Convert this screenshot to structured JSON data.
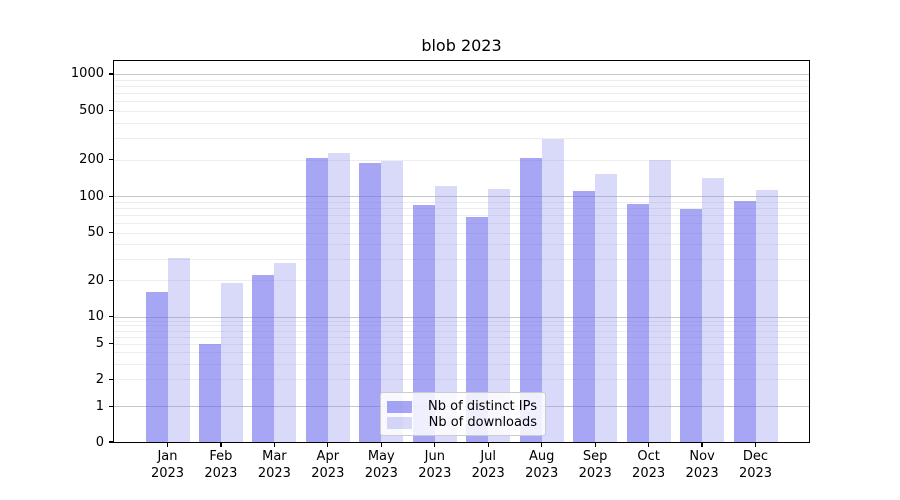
{
  "title": "blob 2023",
  "chart_data": {
    "type": "bar",
    "title": "blob 2023",
    "xlabel": "",
    "ylabel": "",
    "scale": "symlog",
    "grid": true,
    "legend_position": "lower-center",
    "categories": [
      "Jan",
      "Feb",
      "Mar",
      "Apr",
      "May",
      "Jun",
      "Jul",
      "Aug",
      "Sep",
      "Oct",
      "Nov",
      "Dec"
    ],
    "category_year": "2023",
    "yticks": [
      0,
      1,
      2,
      5,
      10,
      20,
      50,
      100,
      200,
      500,
      1000
    ],
    "ylim": [
      0,
      1275
    ],
    "series": [
      {
        "name": "Nb of distinct IPs",
        "color": "#6a6aee",
        "opacity": 0.6,
        "values": [
          16,
          5,
          22,
          204,
          187,
          84,
          68,
          204,
          110,
          86,
          78,
          91
        ]
      },
      {
        "name": "Nb of downloads",
        "color": "#8c8cf0",
        "opacity": 0.33,
        "values": [
          31,
          19,
          28,
          224,
          194,
          121,
          114,
          296,
          151,
          197,
          140,
          112
        ]
      }
    ],
    "colors": {
      "major_gridline": "#c6c6c6",
      "minor_gridline": "#ededed",
      "axis": "#000000",
      "background": "#ffffff"
    }
  }
}
